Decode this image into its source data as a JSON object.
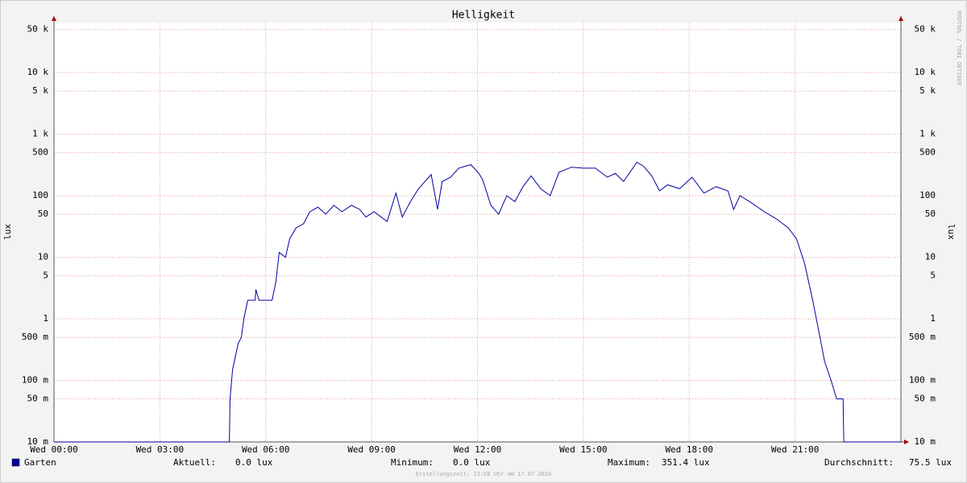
{
  "chart_data": {
    "type": "line",
    "title": "Helligkeit",
    "y_label": "lux",
    "log_scale": true,
    "grid": true,
    "x": [
      0,
      4.97,
      4.99,
      5.06,
      5.22,
      5.31,
      5.38,
      5.49,
      5.7,
      5.72,
      5.81,
      6.18,
      6.29,
      6.38,
      6.56,
      6.68,
      6.86,
      7.07,
      7.25,
      7.48,
      7.7,
      7.93,
      8.16,
      8.43,
      8.66,
      8.84,
      9.07,
      9.44,
      9.69,
      9.87,
      10.1,
      10.33,
      10.69,
      10.87,
      11.0,
      11.24,
      11.47,
      11.81,
      12.04,
      12.15,
      12.38,
      12.6,
      12.83,
      13.06,
      13.29,
      13.52,
      13.79,
      14.06,
      14.31,
      14.66,
      15.0,
      15.34,
      15.68,
      15.91,
      16.14,
      16.52,
      16.71,
      16.94,
      17.16,
      17.39,
      17.73,
      18.08,
      18.42,
      18.76,
      19.1,
      19.26,
      19.44,
      19.79,
      20.13,
      20.47,
      20.81,
      21.04,
      21.27,
      21.5,
      21.68,
      21.84,
      22.02,
      22.18,
      22.36,
      22.38,
      24
    ],
    "series": [
      {
        "name": "Garten",
        "color": "#0000a0",
        "values": [
          0,
          0,
          0.05,
          0.15,
          0.4,
          0.5,
          1,
          2,
          2,
          3,
          2,
          2,
          4,
          12,
          10,
          20,
          30,
          35,
          55,
          65,
          50,
          70,
          55,
          70,
          60,
          45,
          55,
          38,
          110,
          45,
          80,
          130,
          220,
          60,
          170,
          200,
          280,
          320,
          230,
          180,
          70,
          50,
          100,
          80,
          140,
          210,
          130,
          100,
          240,
          290,
          280,
          280,
          200,
          230,
          170,
          350,
          300,
          210,
          120,
          150,
          130,
          200,
          110,
          140,
          120,
          60,
          100,
          75,
          55,
          42,
          30,
          20,
          8,
          2,
          0.6,
          0.2,
          0.1,
          0.05,
          0.05,
          0,
          0
        ]
      }
    ],
    "xlim": [
      0,
      24
    ],
    "xticks": [
      {
        "value": 0,
        "label": "Wed 00:00"
      },
      {
        "value": 3,
        "label": "Wed 03:00"
      },
      {
        "value": 6,
        "label": "Wed 06:00"
      },
      {
        "value": 9,
        "label": "Wed 09:00"
      },
      {
        "value": 12,
        "label": "Wed 12:00"
      },
      {
        "value": 15,
        "label": "Wed 15:00"
      },
      {
        "value": 18,
        "label": "Wed 18:00"
      },
      {
        "value": 21,
        "label": "Wed 21:00"
      }
    ],
    "ylim": [
      0.01,
      65000
    ],
    "yticks": [
      {
        "value": 0.01,
        "label": "10 m"
      },
      {
        "value": 0.05,
        "label": "50 m"
      },
      {
        "value": 0.1,
        "label": "100 m"
      },
      {
        "value": 0.5,
        "label": "500 m"
      },
      1,
      5,
      10,
      50,
      100,
      500,
      {
        "value": 1000,
        "label": "1 k"
      },
      {
        "value": 5000,
        "label": "5 k"
      },
      {
        "value": 10000,
        "label": "10 k"
      },
      {
        "value": 50000,
        "label": "50 k"
      }
    ],
    "stats": [
      {
        "label": "Aktuell:",
        "value": "0.0 lux"
      },
      {
        "label": "Minimum:",
        "value": "0.0 lux"
      },
      {
        "label": "Maximum:",
        "value": "351.4 lux"
      },
      {
        "label": "Durchschnitt:",
        "value": "75.5 lux"
      }
    ],
    "watermark": "RRDTOOL / TOBI OETIKER",
    "footer": "Erstellungszeit: 23:58 Uhr am 17.07.2024"
  }
}
